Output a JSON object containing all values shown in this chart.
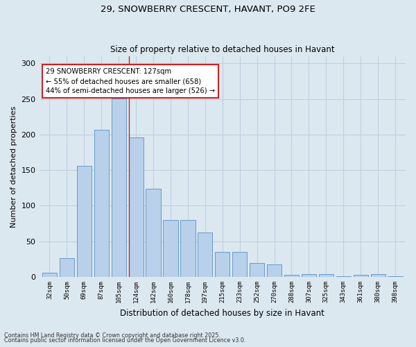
{
  "title_line1": "29, SNOWBERRY CRESCENT, HAVANT, PO9 2FE",
  "title_line2": "Size of property relative to detached houses in Havant",
  "xlabel": "Distribution of detached houses by size in Havant",
  "ylabel": "Number of detached properties",
  "categories": [
    "32sqm",
    "50sqm",
    "69sqm",
    "87sqm",
    "105sqm",
    "124sqm",
    "142sqm",
    "160sqm",
    "178sqm",
    "197sqm",
    "215sqm",
    "233sqm",
    "252sqm",
    "270sqm",
    "288sqm",
    "307sqm",
    "325sqm",
    "343sqm",
    "361sqm",
    "380sqm",
    "398sqm"
  ],
  "values": [
    6,
    26,
    156,
    207,
    251,
    196,
    124,
    80,
    80,
    62,
    35,
    35,
    20,
    18,
    3,
    4,
    4,
    1,
    3,
    4,
    1
  ],
  "bar_color": "#b8d0ea",
  "bar_edge_color": "#6699cc",
  "marker_label_line1": "29 SNOWBERRY CRESCENT: 127sqm",
  "marker_label_line2": "← 55% of detached houses are smaller (658)",
  "marker_label_line3": "44% of semi-detached houses are larger (526) →",
  "annotation_box_color": "#ffffff",
  "annotation_box_edge": "#cc2222",
  "vline_color": "#cc2222",
  "vline_x": 5.0,
  "grid_color": "#c0cfe0",
  "background_color": "#dce8f0",
  "footer_line1": "Contains HM Land Registry data © Crown copyright and database right 2025.",
  "footer_line2": "Contains public sector information licensed under the Open Government Licence v3.0.",
  "ylim": [
    0,
    310
  ],
  "yticks": [
    0,
    50,
    100,
    150,
    200,
    250,
    300
  ]
}
